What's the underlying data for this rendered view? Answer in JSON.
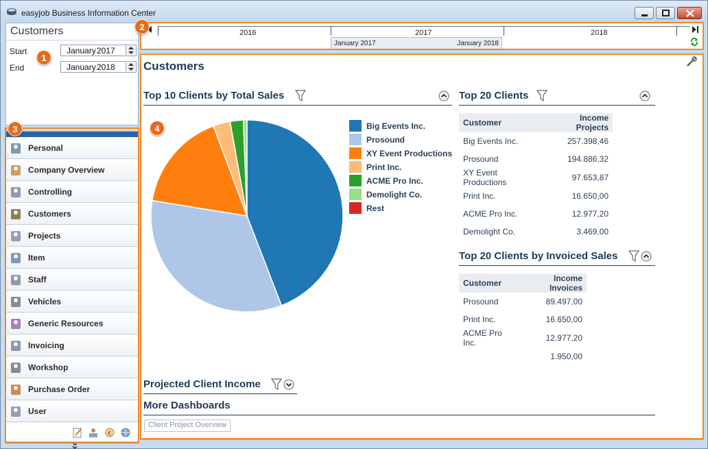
{
  "window": {
    "title": "easyjob Business Information Center"
  },
  "left_panel": {
    "title": "Customers",
    "start_label": "Start",
    "end_label": "End",
    "start_month": "January",
    "start_year": "2017",
    "end_month": "January",
    "end_year": "2018"
  },
  "timeline": {
    "years": [
      "2016",
      "2017",
      "2018"
    ],
    "range_start": "January 2017",
    "range_end": "January 2018"
  },
  "nav": {
    "items": [
      {
        "label": "Personal",
        "icon": "move-arrows-icon"
      },
      {
        "label": "Company Overview",
        "icon": "people-group-icon"
      },
      {
        "label": "Controlling",
        "icon": "calculator-icon"
      },
      {
        "label": "Customers",
        "icon": "customer-person-icon"
      },
      {
        "label": "Projects",
        "icon": "document-icon"
      },
      {
        "label": "Item",
        "icon": "boxes-icon"
      },
      {
        "label": "Staff",
        "icon": "staff-person-icon"
      },
      {
        "label": "Vehicles",
        "icon": "truck-icon"
      },
      {
        "label": "Generic Resources",
        "icon": "atom-icon"
      },
      {
        "label": "Invoicing",
        "icon": "invoice-icon"
      },
      {
        "label": "Workshop",
        "icon": "wrench-icon"
      },
      {
        "label": "Purchase Order",
        "icon": "arrow-document-icon"
      },
      {
        "label": "User",
        "icon": "user-icon"
      }
    ]
  },
  "main": {
    "title": "Customers",
    "top10": {
      "title": "Top 10 Clients by Total Sales"
    },
    "top20": {
      "title": "Top 20 Clients",
      "col_customer": "Customer",
      "col_value": "Income Projects",
      "rows": [
        {
          "customer": "Big Events Inc.",
          "value": "257.398,46"
        },
        {
          "customer": "Prosound",
          "value": "194.886,32"
        },
        {
          "customer": "XY Event Productions",
          "value": "97.653,87"
        },
        {
          "customer": "Print Inc.",
          "value": "16.650,00"
        },
        {
          "customer": "ACME Pro Inc.",
          "value": "12.977,20"
        },
        {
          "customer": "Demolight Co.",
          "value": "3.469,00"
        }
      ]
    },
    "invoiced": {
      "title": "Top 20 Clients by Invoiced Sales",
      "col_customer": "Customer",
      "col_value": "Income Invoices",
      "rows": [
        {
          "customer": "Prosound",
          "value": "89.497,00"
        },
        {
          "customer": "Print Inc.",
          "value": "16.650,00"
        },
        {
          "customer": "ACME Pro Inc.",
          "value": "12.977,20"
        },
        {
          "customer": "",
          "value": "1.950,00"
        }
      ]
    },
    "projected_title": "Projected Client Income",
    "more_title": "More Dashboards",
    "link_label": "Client Project Overview"
  },
  "callouts": [
    "1",
    "2",
    "3",
    "4"
  ],
  "colors": {
    "accent_orange": "#ee8a2a",
    "nav_grip": "#2d63a7"
  },
  "chart_data": {
    "type": "pie",
    "title": "Top 10 Clients by Total Sales",
    "categories": [
      "Big Events Inc.",
      "Prosound",
      "XY Event Productions",
      "Print Inc.",
      "ACME Pro Inc.",
      "Demolight Co.",
      "Rest"
    ],
    "values": [
      257398.46,
      194886.32,
      97653.87,
      16650.0,
      12977.2,
      3469.0,
      0
    ],
    "colors": [
      "#1f77b4",
      "#aec7e8",
      "#ff7f0e",
      "#ffbb78",
      "#2ca02c",
      "#98df8a",
      "#d62728"
    ],
    "legend": "right"
  }
}
